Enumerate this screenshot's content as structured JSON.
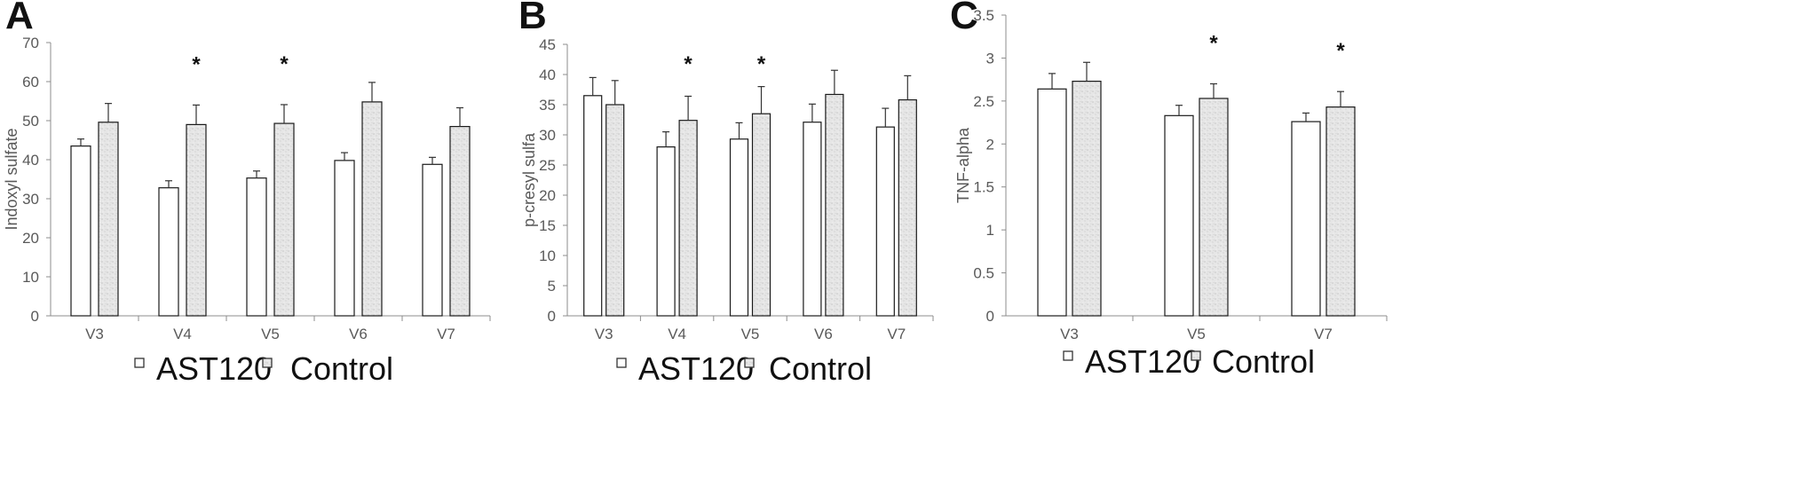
{
  "colors": {
    "ast120_fill": "#ffffff",
    "control_fill": "#e4e4e4",
    "bar_stroke": "#1a1a1a",
    "axis": "#8c8c8c",
    "text": "#595959"
  },
  "chart_data": [
    {
      "type": "bar",
      "panel": "A",
      "title": "",
      "xlabel": "",
      "ylabel": "Indoxyl sulfate",
      "ylim": [
        0,
        70
      ],
      "yticks": [
        0,
        10,
        20,
        30,
        40,
        50,
        60,
        70
      ],
      "categories": [
        "V3",
        "V4",
        "V5",
        "V6",
        "V7"
      ],
      "series": [
        {
          "name": "AST120",
          "values": [
            43.5,
            32.8,
            35.3,
            39.8,
            38.8
          ],
          "errors": [
            1.8,
            1.8,
            1.8,
            2.0,
            1.8
          ]
        },
        {
          "name": "Control",
          "values": [
            49.6,
            49.0,
            49.3,
            54.8,
            48.5
          ],
          "errors": [
            4.8,
            5.0,
            4.8,
            5.0,
            4.8
          ]
        }
      ],
      "significance": [
        "",
        "*",
        "*",
        "",
        ""
      ],
      "legend": [
        "AST120",
        "Control"
      ],
      "legend_position": "bottom",
      "grid": false
    },
    {
      "type": "bar",
      "panel": "B",
      "title": "",
      "xlabel": "",
      "ylabel": "p-cresyl sulfa",
      "ylim": [
        0,
        45
      ],
      "yticks": [
        0,
        5,
        10,
        15,
        20,
        25,
        30,
        35,
        40,
        45
      ],
      "categories": [
        "V3",
        "V4",
        "V5",
        "V6",
        "V7"
      ],
      "series": [
        {
          "name": "AST120",
          "values": [
            36.5,
            28.0,
            29.3,
            32.1,
            31.3
          ],
          "errors": [
            3.0,
            2.5,
            2.7,
            3.0,
            3.1
          ]
        },
        {
          "name": "Control",
          "values": [
            35.0,
            32.4,
            33.5,
            36.7,
            35.8
          ],
          "errors": [
            4.0,
            4.0,
            4.5,
            4.0,
            4.0
          ]
        }
      ],
      "significance": [
        "",
        "*",
        "*",
        "",
        ""
      ],
      "legend": [
        "AST120",
        "Control"
      ],
      "legend_position": "bottom",
      "grid": false
    },
    {
      "type": "bar",
      "panel": "C",
      "title": "",
      "xlabel": "",
      "ylabel": "TNF-alpha",
      "ylim": [
        0,
        3.5
      ],
      "yticks": [
        0,
        0.5,
        1,
        1.5,
        2,
        2.5,
        3,
        3.5
      ],
      "categories": [
        "V3",
        "V5",
        "V7"
      ],
      "series": [
        {
          "name": "AST120",
          "values": [
            2.64,
            2.33,
            2.26
          ],
          "errors": [
            0.18,
            0.12,
            0.1
          ]
        },
        {
          "name": "Control",
          "values": [
            2.73,
            2.53,
            2.43
          ],
          "errors": [
            0.22,
            0.17,
            0.18
          ]
        }
      ],
      "significance": [
        "",
        "*",
        "*"
      ],
      "legend": [
        "AST120",
        "Control"
      ],
      "legend_position": "bottom",
      "grid": false
    }
  ]
}
